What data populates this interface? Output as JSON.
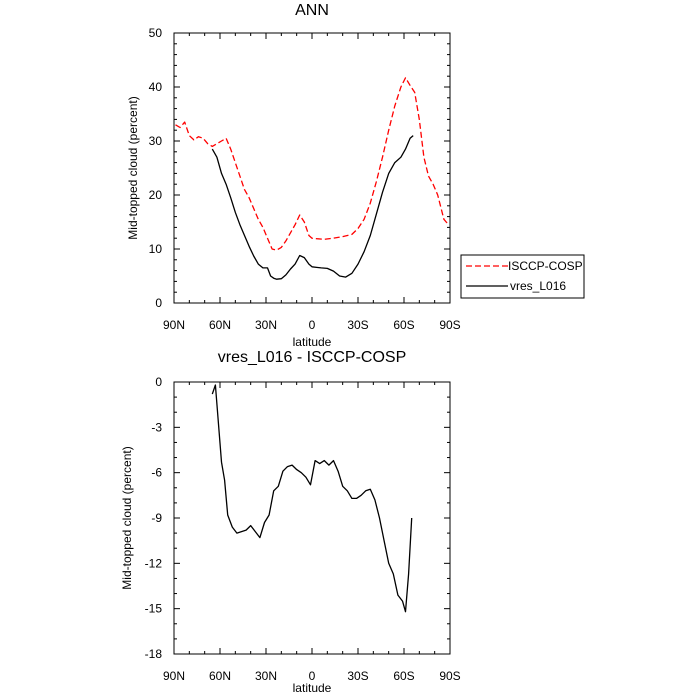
{
  "chart_data": [
    {
      "type": "line",
      "title": "ANN",
      "xlabel": "latitude",
      "ylabel": "Mid-topped cloud (percent)",
      "xlim": [
        90,
        -90
      ],
      "ylim": [
        0,
        50
      ],
      "x_ticks": [
        90,
        60,
        30,
        0,
        -30,
        -60,
        -90
      ],
      "x_tick_labels": [
        "90N",
        "60N",
        "30N",
        "0",
        "30S",
        "60S",
        "90S"
      ],
      "y_ticks": [
        0,
        10,
        20,
        30,
        40,
        50
      ],
      "y_tick_labels": [
        "0",
        "10",
        "20",
        "30",
        "40",
        "50"
      ],
      "legend_position": "right",
      "series": [
        {
          "name": "ISCCP-COSP",
          "color": "#ff0000",
          "dash": "dashed",
          "x": [
            89,
            86,
            83,
            80,
            77,
            74,
            71,
            68,
            65,
            62,
            59,
            56,
            53,
            50,
            47,
            44,
            41,
            38,
            35,
            32,
            29,
            26,
            23,
            20,
            17,
            14,
            11,
            8,
            5,
            2,
            0,
            -3,
            -8,
            -14,
            -20,
            -26,
            -30,
            -34,
            -38,
            -42,
            -46,
            -50,
            -54,
            -58,
            -61,
            -64,
            -67,
            -70,
            -73,
            -76,
            -79,
            -82,
            -86,
            -89
          ],
          "values": [
            33,
            32.5,
            33.5,
            31,
            30.2,
            30.8,
            30.5,
            29.5,
            29,
            29.5,
            30,
            30.5,
            28.5,
            26,
            23.5,
            21,
            19.5,
            17.5,
            15.5,
            14,
            12,
            10,
            9.8,
            10.3,
            11.5,
            13,
            14.5,
            16.3,
            15,
            12.5,
            12,
            11.9,
            11.8,
            12,
            12.3,
            12.7,
            13.8,
            15.5,
            18.5,
            22.5,
            27,
            32,
            36.5,
            40,
            41.7,
            40.3,
            39,
            34,
            27,
            23.5,
            22,
            20,
            15.5,
            14.5
          ]
        },
        {
          "name": "vres_L016",
          "color": "#000000",
          "dash": "solid",
          "x": [
            65,
            62,
            59,
            56,
            53,
            50,
            47,
            44,
            41,
            38,
            35,
            32,
            29,
            27,
            25,
            23,
            20,
            17,
            14,
            11,
            8,
            5,
            2,
            0,
            -3,
            -6,
            -10,
            -14,
            -18,
            -22,
            -26,
            -30,
            -34,
            -38,
            -42,
            -46,
            -50,
            -54,
            -58,
            -61,
            -64,
            -66
          ],
          "values": [
            28.5,
            27,
            24,
            22,
            19.5,
            16.8,
            14.5,
            12.5,
            10.5,
            8.7,
            7.2,
            6.5,
            6.5,
            5,
            4.6,
            4.4,
            4.5,
            5.2,
            6.3,
            7.2,
            8.8,
            8.4,
            7.2,
            6.7,
            6.6,
            6.5,
            6.4,
            5.9,
            5,
            4.8,
            5.5,
            7.2,
            9.5,
            12.5,
            16.5,
            20.5,
            24,
            26,
            27,
            28.5,
            30.5,
            31
          ]
        }
      ]
    },
    {
      "type": "line",
      "title": "vres_L016 - ISCCP-COSP",
      "xlabel": "latitude",
      "ylabel": "Mid-topped cloud (percent)",
      "xlim": [
        90,
        -90
      ],
      "ylim": [
        -18,
        0
      ],
      "x_ticks": [
        90,
        60,
        30,
        0,
        -30,
        -60,
        -90
      ],
      "x_tick_labels": [
        "90N",
        "60N",
        "30N",
        "0",
        "30S",
        "60S",
        "90S"
      ],
      "y_ticks": [
        0,
        -3,
        -6,
        -9,
        -12,
        -15,
        -18
      ],
      "y_tick_labels": [
        "0",
        "-3",
        "-6",
        "-9",
        "-12",
        "-15",
        "-18"
      ],
      "series": [
        {
          "name": "vres_L016 - ISCCP-COSP",
          "color": "#000000",
          "dash": "solid",
          "x": [
            65,
            63,
            59,
            57,
            55,
            52,
            49,
            46,
            43,
            40,
            37,
            34,
            31,
            28,
            25,
            22,
            19,
            16,
            13,
            10,
            7,
            4,
            1,
            -2,
            -5,
            -8,
            -11,
            -14,
            -17,
            -20,
            -23,
            -26,
            -29,
            -32,
            -35,
            -38,
            -41,
            -44,
            -47,
            -50,
            -53,
            -56,
            -59,
            -61,
            -63,
            -65
          ],
          "values": [
            -0.8,
            -0.2,
            -5.3,
            -6.5,
            -8.8,
            -9.6,
            -10,
            -9.9,
            -9.8,
            -9.5,
            -9.9,
            -10.3,
            -9.3,
            -8.8,
            -7.2,
            -6.9,
            -5.9,
            -5.6,
            -5.5,
            -5.8,
            -6,
            -6.3,
            -6.8,
            -5.2,
            -5.4,
            -5.2,
            -5.5,
            -5.2,
            -5.9,
            -6.9,
            -7.2,
            -7.7,
            -7.7,
            -7.5,
            -7.2,
            -7.1,
            -7.8,
            -9,
            -10.5,
            -12,
            -12.7,
            -14.1,
            -14.5,
            -15.2,
            -12.7,
            -9
          ]
        }
      ]
    }
  ]
}
